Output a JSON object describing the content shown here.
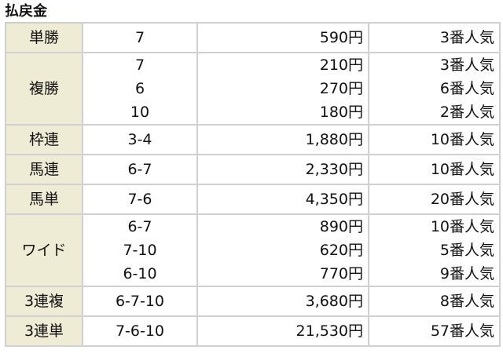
{
  "title": "払戻金",
  "colors": {
    "label_bg": "#efecd6",
    "border": "#d0d0d0"
  },
  "rows": [
    {
      "type": "単勝",
      "entries": [
        {
          "combo": "7",
          "payout": "590円",
          "popularity": "3番人気"
        }
      ]
    },
    {
      "type": "複勝",
      "entries": [
        {
          "combo": "7",
          "payout": "210円",
          "popularity": "3番人気"
        },
        {
          "combo": "6",
          "payout": "270円",
          "popularity": "6番人気"
        },
        {
          "combo": "10",
          "payout": "180円",
          "popularity": "2番人気"
        }
      ]
    },
    {
      "type": "枠連",
      "entries": [
        {
          "combo": "3-4",
          "payout": "1,880円",
          "popularity": "10番人気"
        }
      ]
    },
    {
      "type": "馬連",
      "entries": [
        {
          "combo": "6-7",
          "payout": "2,330円",
          "popularity": "10番人気"
        }
      ]
    },
    {
      "type": "馬単",
      "entries": [
        {
          "combo": "7-6",
          "payout": "4,350円",
          "popularity": "20番人気"
        }
      ]
    },
    {
      "type": "ワイド",
      "entries": [
        {
          "combo": "6-7",
          "payout": "890円",
          "popularity": "10番人気"
        },
        {
          "combo": "7-10",
          "payout": "620円",
          "popularity": "5番人気"
        },
        {
          "combo": "6-10",
          "payout": "770円",
          "popularity": "9番人気"
        }
      ]
    },
    {
      "type": "3連複",
      "entries": [
        {
          "combo": "6-7-10",
          "payout": "3,680円",
          "popularity": "8番人気"
        }
      ]
    },
    {
      "type": "3連単",
      "entries": [
        {
          "combo": "7-6-10",
          "payout": "21,530円",
          "popularity": "57番人気"
        }
      ]
    }
  ]
}
